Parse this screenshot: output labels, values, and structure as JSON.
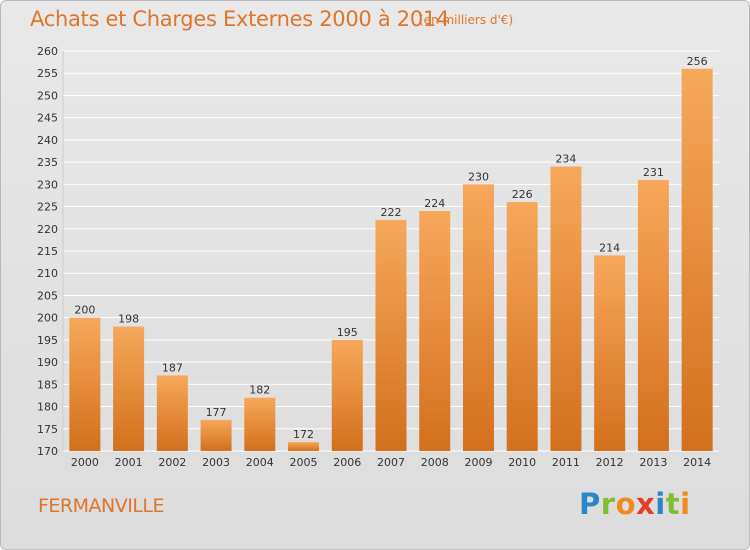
{
  "header": {
    "title": "Achats et Charges Externes 2000 à 2014",
    "unit": "(en milliers d'€)"
  },
  "footer": {
    "place": "FERMANVILLE",
    "logo": {
      "text": "Proxiti",
      "letters": [
        {
          "ch": "P",
          "color": "#2a86c9"
        },
        {
          "ch": "r",
          "color": "#7fbe2e"
        },
        {
          "ch": "o",
          "color": "#f08a1e"
        },
        {
          "ch": "x",
          "color": "#e23c2a"
        },
        {
          "ch": "i",
          "color": "#2a86c9"
        },
        {
          "ch": "t",
          "color": "#7fbe2e"
        },
        {
          "ch": "i",
          "color": "#f08a1e"
        }
      ]
    }
  },
  "colors": {
    "title": "#e0752a",
    "bar_top": "#f7a85a",
    "bar_bottom": "#d2701c",
    "grid": "#ffffff",
    "axis_text": "#333333"
  },
  "chart_data": {
    "type": "bar",
    "categories": [
      "2000",
      "2001",
      "2002",
      "2003",
      "2004",
      "2005",
      "2006",
      "2007",
      "2008",
      "2009",
      "2010",
      "2011",
      "2012",
      "2013",
      "2014"
    ],
    "values": [
      200,
      198,
      187,
      177,
      182,
      172,
      195,
      222,
      224,
      230,
      226,
      234,
      214,
      231,
      256
    ],
    "ylim": [
      170,
      260
    ],
    "ytick_step": 5,
    "grid": true,
    "data_labels": true
  }
}
